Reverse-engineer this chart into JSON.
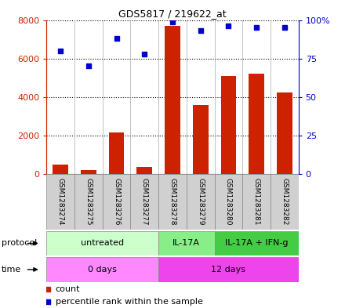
{
  "title": "GDS5817 / 219622_at",
  "samples": [
    "GSM1283274",
    "GSM1283275",
    "GSM1283276",
    "GSM1283277",
    "GSM1283278",
    "GSM1283279",
    "GSM1283280",
    "GSM1283281",
    "GSM1283282"
  ],
  "counts": [
    480,
    200,
    2150,
    380,
    7700,
    3580,
    5100,
    5200,
    4250
  ],
  "percentile_ranks": [
    80,
    70,
    88,
    78,
    99,
    93,
    96,
    95,
    95
  ],
  "bar_color": "#cc2200",
  "dot_color": "#0000cc",
  "ylim_left": [
    0,
    8000
  ],
  "ylim_right": [
    0,
    100
  ],
  "yticks_left": [
    0,
    2000,
    4000,
    6000,
    8000
  ],
  "ytick_labels_left": [
    "0",
    "2000",
    "4000",
    "6000",
    "8000"
  ],
  "yticks_right": [
    0,
    25,
    50,
    75,
    100
  ],
  "ytick_labels_right": [
    "0",
    "25",
    "50",
    "75",
    "100%"
  ],
  "protocol_groups": [
    {
      "label": "untreated",
      "start": 0,
      "end": 4,
      "color": "#ccffcc"
    },
    {
      "label": "IL-17A",
      "start": 4,
      "end": 6,
      "color": "#88ee88"
    },
    {
      "label": "IL-17A + IFN-g",
      "start": 6,
      "end": 9,
      "color": "#44cc44"
    }
  ],
  "time_groups": [
    {
      "label": "0 days",
      "start": 0,
      "end": 4,
      "color": "#ff88ff"
    },
    {
      "label": "12 days",
      "start": 4,
      "end": 9,
      "color": "#ee44ee"
    }
  ],
  "protocol_label": "protocol",
  "time_label": "time",
  "legend_count_label": "count",
  "legend_percentile_label": "percentile rank within the sample",
  "bg_color": "#ffffff",
  "grid_color": "#000000",
  "left_axis_color": "#cc2200",
  "right_axis_color": "#0000cc",
  "label_box_color": "#d0d0d0",
  "label_box_edge": "#888888"
}
